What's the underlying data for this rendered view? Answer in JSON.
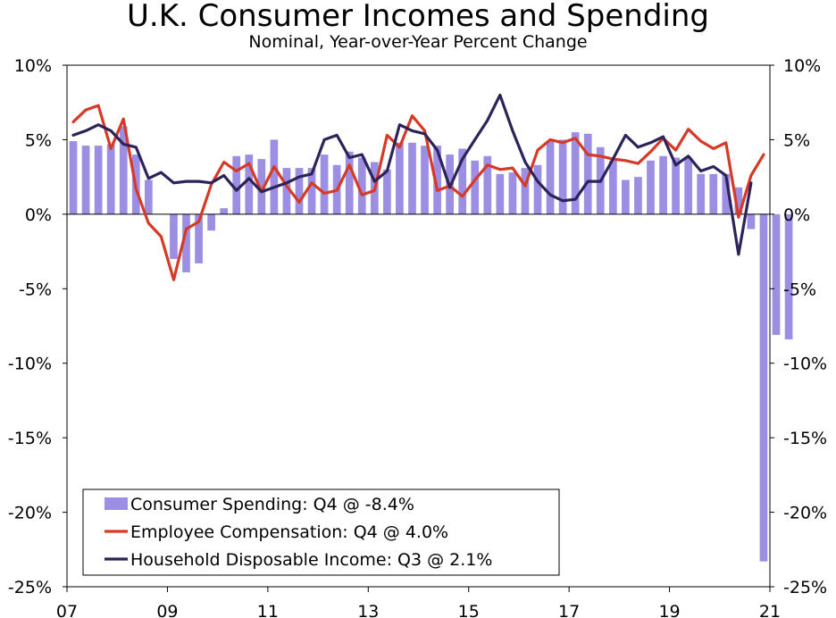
{
  "chart_data": {
    "type": "bar+line",
    "title": "U.K. Consumer Incomes and Spending",
    "subtitle": "Nominal, Year-over-Year Percent Change",
    "ylim": [
      -25,
      10
    ],
    "yticks": [
      10,
      5,
      0,
      -5,
      -10,
      -15,
      -20,
      -25
    ],
    "ytick_labels": [
      "10%",
      "5%",
      "0%",
      "-5%",
      "-10%",
      "-15%",
      "-20%",
      "-25%"
    ],
    "xlim": [
      2007,
      2021
    ],
    "xticks": [
      2007,
      2009,
      2011,
      2013,
      2015,
      2017,
      2019,
      2021
    ],
    "xtick_labels": [
      "07",
      "09",
      "11",
      "13",
      "15",
      "17",
      "19",
      "21"
    ],
    "colors": {
      "spending": "#9b8ee3",
      "compensation": "#d63a26",
      "income": "#2e2359"
    },
    "legend": [
      {
        "key": "spending",
        "label": "Consumer Spending: Q4 @ -8.4%"
      },
      {
        "key": "compensation",
        "label": "Employee Compensation: Q4 @ 4.0%"
      },
      {
        "key": "income",
        "label": "Household Disposable Income: Q3 @ 2.1%"
      }
    ],
    "series": [
      {
        "name": "Consumer Spending",
        "key": "spending",
        "kind": "bar",
        "start": 2007.0,
        "step": 0.25,
        "values": [
          4.9,
          4.6,
          4.6,
          4.7,
          5.9,
          4.0,
          2.3,
          0.0,
          -3.0,
          -3.9,
          -3.3,
          -1.1,
          0.4,
          3.9,
          4.0,
          3.7,
          5.0,
          3.1,
          3.1,
          3.1,
          4.0,
          3.3,
          4.2,
          3.8,
          3.5,
          3.0,
          4.8,
          4.8,
          4.6,
          4.6,
          4.0,
          4.4,
          3.6,
          3.9,
          2.7,
          2.8,
          3.1,
          3.3,
          4.9,
          5.0,
          5.5,
          5.4,
          4.5,
          3.6,
          2.3,
          2.5,
          3.6,
          3.9,
          3.8,
          3.8,
          2.7,
          2.7,
          2.7,
          1.8,
          -1.0,
          -23.3,
          -8.1,
          -8.4
        ]
      },
      {
        "name": "Employee Compensation",
        "key": "compensation",
        "kind": "line",
        "start": 2007.0,
        "step": 0.25,
        "values": [
          6.2,
          7.0,
          7.3,
          4.4,
          6.4,
          1.7,
          -0.6,
          -1.5,
          -4.4,
          -1.0,
          -0.5,
          2.0,
          3.5,
          2.9,
          3.4,
          1.5,
          3.2,
          1.9,
          0.8,
          2.1,
          1.4,
          1.6,
          3.3,
          1.3,
          1.6,
          5.3,
          4.5,
          6.6,
          5.6,
          1.6,
          1.9,
          1.2,
          2.3,
          3.3,
          3.0,
          3.1,
          1.9,
          4.3,
          5.0,
          4.8,
          5.1,
          4.0,
          3.9,
          3.7,
          3.6,
          3.4,
          4.2,
          5.1,
          4.3,
          5.7,
          4.9,
          4.4,
          4.8,
          -0.2,
          2.6,
          4.0
        ]
      },
      {
        "name": "Household Disposable Income",
        "key": "income",
        "kind": "line",
        "start": 2007.0,
        "step": 0.25,
        "values": [
          5.3,
          5.6,
          6.0,
          5.6,
          4.7,
          4.5,
          2.4,
          2.8,
          2.1,
          2.2,
          2.2,
          2.1,
          2.6,
          1.6,
          2.4,
          1.5,
          1.8,
          2.1,
          2.5,
          2.7,
          5.0,
          5.3,
          3.8,
          4.0,
          2.2,
          2.9,
          6.0,
          5.6,
          5.4,
          4.3,
          1.8,
          3.7,
          5.0,
          6.3,
          8.0,
          5.6,
          3.5,
          2.2,
          1.3,
          0.9,
          1.0,
          2.2,
          2.2,
          3.7,
          5.3,
          4.5,
          4.8,
          5.2,
          3.3,
          3.9,
          2.9,
          3.2,
          2.6,
          -2.7,
          2.1
        ]
      }
    ]
  }
}
